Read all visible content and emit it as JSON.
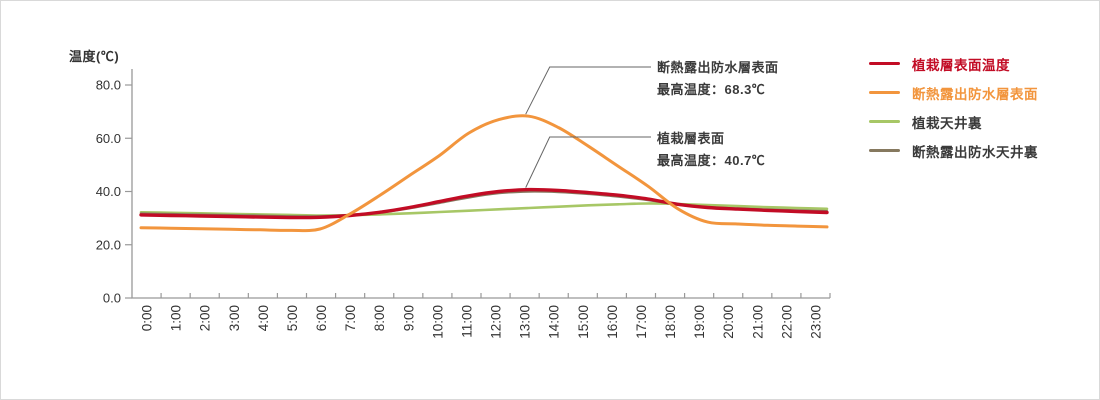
{
  "frame": {
    "background": "#ffffff",
    "border_color": "#d9d9d9"
  },
  "chart_data": {
    "type": "line",
    "title": "",
    "xlabel": "",
    "ylabel": "温度(℃)",
    "ylim": [
      0,
      80
    ],
    "y_tick_step": 20,
    "y_tick_labels": [
      "0.0",
      "20.0",
      "40.0",
      "60.0",
      "80.0"
    ],
    "grid": false,
    "legend_position": "right",
    "axis_color": "#999999",
    "tick_label_color": "#333333",
    "x": [
      "0:00",
      "1:00",
      "2:00",
      "3:00",
      "4:00",
      "5:00",
      "6:00",
      "7:00",
      "8:00",
      "9:00",
      "10:00",
      "11:00",
      "12:00",
      "13:00",
      "14:00",
      "15:00",
      "16:00",
      "17:00",
      "18:00",
      "19:00",
      "20:00",
      "21:00",
      "22:00",
      "23:00"
    ],
    "series": [
      {
        "name": "植栽層表面温度",
        "color": "#c20c25",
        "legend_text_color": "#c20c25",
        "values": [
          31.2,
          31.0,
          30.8,
          30.6,
          30.4,
          30.2,
          30.3,
          31.0,
          32.2,
          34.0,
          36.2,
          38.4,
          40.0,
          40.7,
          40.4,
          39.6,
          38.6,
          37.2,
          35.2,
          34.0,
          33.4,
          32.9,
          32.5,
          32.1
        ]
      },
      {
        "name": "断熱露出防水層表面",
        "color": "#f2953d",
        "legend_text_color": "#f2953d",
        "values": [
          26.4,
          26.2,
          26.0,
          25.8,
          25.6,
          25.4,
          25.9,
          31.5,
          38.5,
          46.0,
          53.5,
          62.0,
          67.0,
          68.3,
          64.0,
          57.0,
          49.5,
          42.0,
          33.5,
          28.5,
          27.8,
          27.3,
          27.0,
          26.7
        ]
      },
      {
        "name": "植栽天井裏",
        "color": "#a7c766",
        "legend_text_color": "#3a3a3a",
        "values": [
          32.2,
          32.0,
          31.8,
          31.6,
          31.4,
          31.2,
          31.0,
          31.1,
          31.4,
          31.8,
          32.3,
          32.8,
          33.3,
          33.8,
          34.3,
          34.8,
          35.2,
          35.5,
          35.3,
          34.9,
          34.5,
          34.1,
          33.8,
          33.5
        ]
      },
      {
        "name": "断熱露出防水天井裏",
        "color": "#86795f",
        "legend_text_color": "#3a3a3a",
        "values": [
          31.7,
          31.5,
          31.3,
          31.1,
          30.9,
          30.7,
          30.7,
          31.2,
          32.1,
          33.7,
          35.7,
          37.8,
          39.4,
          40.0,
          39.8,
          39.1,
          38.1,
          36.8,
          35.1,
          34.1,
          33.6,
          33.2,
          32.9,
          32.6
        ]
      }
    ]
  },
  "annotations": [
    {
      "line1": "断熱露出防水層表面",
      "line2": "最高温度：68.3℃",
      "series_index": 1,
      "max_value": 68.3
    },
    {
      "line1": "植栽層表面",
      "line2": "最高温度：40.7℃",
      "series_index": 0,
      "max_value": 40.7
    }
  ]
}
